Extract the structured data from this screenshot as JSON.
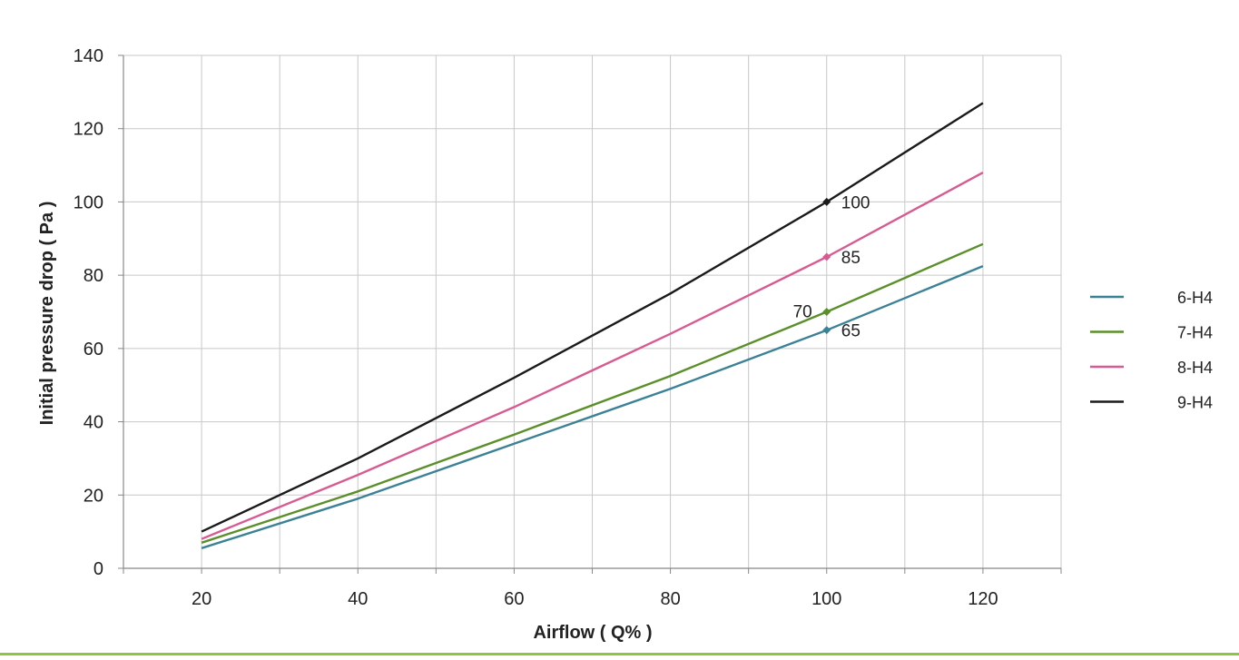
{
  "chart_data": {
    "type": "line",
    "title": "",
    "xlabel": "Airflow ( Q% )",
    "ylabel": "Initial pressure drop  ( Pa )",
    "xlim": [
      10,
      130
    ],
    "ylim": [
      0,
      140
    ],
    "x_ticks": [
      20,
      40,
      60,
      80,
      100,
      120
    ],
    "y_ticks": [
      0,
      20,
      40,
      60,
      80,
      100,
      120,
      140
    ],
    "x_tick_labels": [
      "20",
      "40",
      "60",
      "80",
      "100",
      "120"
    ],
    "y_tick_labels": [
      "0",
      "20",
      "40",
      "60",
      "80",
      "100",
      "120",
      "140"
    ],
    "grid": true,
    "legend_position": "right",
    "series": [
      {
        "name": "6-H4",
        "color": "#3b8296",
        "x": [
          20,
          40,
          60,
          80,
          100,
          120
        ],
        "y": [
          5.5,
          19,
          34,
          49,
          65,
          82.5
        ],
        "labeled_point": {
          "x": 100,
          "y": 65,
          "label": "65",
          "side": "right"
        }
      },
      {
        "name": "7-H4",
        "color": "#5a8f29",
        "x": [
          20,
          40,
          60,
          80,
          100,
          120
        ],
        "y": [
          7,
          21,
          36.5,
          52.5,
          70,
          88.5
        ],
        "labeled_point": {
          "x": 100,
          "y": 70,
          "label": "70",
          "side": "left"
        }
      },
      {
        "name": "8-H4",
        "color": "#d75b92",
        "x": [
          20,
          40,
          60,
          80,
          100,
          120
        ],
        "y": [
          8,
          25.5,
          44,
          64,
          85,
          108
        ],
        "labeled_point": {
          "x": 100,
          "y": 85,
          "label": "85",
          "side": "right"
        }
      },
      {
        "name": "9-H4",
        "color": "#1a1a1a",
        "x": [
          20,
          40,
          60,
          80,
          100,
          120
        ],
        "y": [
          10,
          30,
          52,
          75,
          100,
          127
        ],
        "labeled_point": {
          "x": 100,
          "y": 100,
          "label": "100",
          "side": "right"
        }
      }
    ]
  }
}
